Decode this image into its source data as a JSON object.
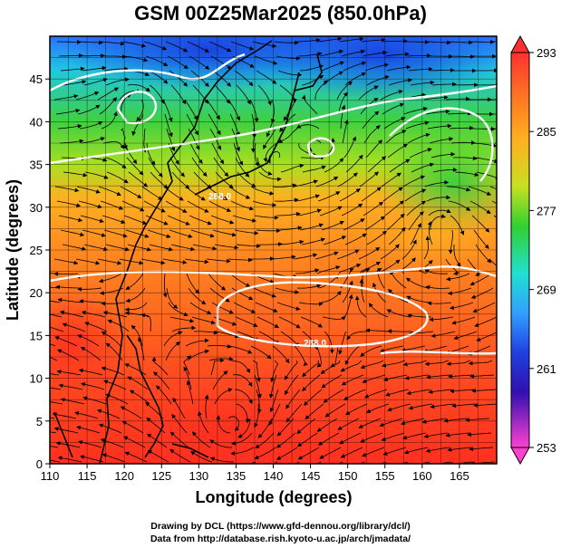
{
  "title": "GSM 00Z25Mar2025 (850.0hPa)",
  "axes": {
    "x_label": "Longitude (degrees)",
    "y_label": "Latitude  (degrees)",
    "x_ticks": [
      "110",
      "115",
      "120",
      "125",
      "130",
      "135",
      "140",
      "145",
      "150",
      "155",
      "160",
      "165"
    ],
    "y_ticks": [
      "0",
      "5",
      "10",
      "15",
      "20",
      "25",
      "30",
      "35",
      "40",
      "45"
    ]
  },
  "colorbar": {
    "labels": [
      "293",
      "285",
      "277",
      "269",
      "261",
      "253"
    ],
    "min": 253,
    "max": 293,
    "colors": [
      "#ff4a4a",
      "#ff7a2a",
      "#ffb020",
      "#f0e020",
      "#80e020",
      "#20d040",
      "#20e0c0",
      "#30a0ff",
      "#2040e0",
      "#4010c0",
      "#c020c0",
      "#ff40c0"
    ]
  },
  "contour_labels": [
    "288.0",
    "288.0"
  ],
  "credits": {
    "line1": "Drawing by DCL (https://www.gfd-dennou.org/library/dcl/)",
    "line2": "Data from http://database.rish.kyoto-u.ac.jp/arch/jmadata/"
  },
  "chart_data": {
    "type": "heatmap",
    "title": "GSM 00Z25Mar2025 (850.0hPa)",
    "xlabel": "Longitude (degrees)",
    "ylabel": "Latitude  (degrees)",
    "xlim": [
      110,
      170
    ],
    "ylim": [
      0,
      50
    ],
    "value_range": [
      253,
      293
    ],
    "contour_levels": [
      288.0
    ]
  }
}
